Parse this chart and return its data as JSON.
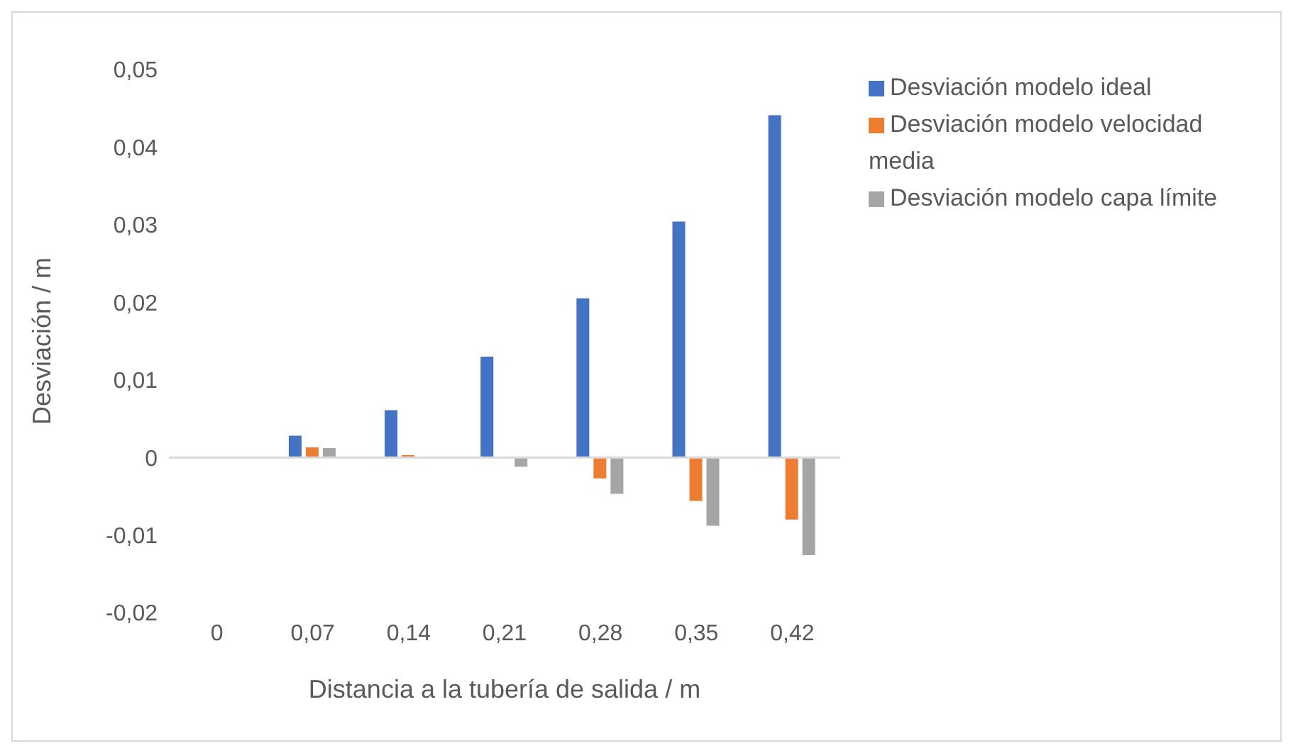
{
  "chart_data": {
    "type": "bar",
    "xlabel": "Distancia a la tubería de salida / m",
    "ylabel": "Desviación / m",
    "categories": [
      "0",
      "0,07",
      "0,14",
      "0,21",
      "0,28",
      "0,35",
      "0,42"
    ],
    "series": [
      {
        "name": "Desviación modelo ideal",
        "color": "#4472c4",
        "values": [
          0,
          0.0028,
          0.0061,
          0.013,
          0.0205,
          0.0304,
          0.0441
        ]
      },
      {
        "name": "Desviación modelo velocidad media",
        "color": "#ed7d31",
        "values": [
          0,
          0.0013,
          0.0003,
          0,
          -0.0027,
          -0.0056,
          -0.008
        ]
      },
      {
        "name": "Desviación modelo capa límite",
        "color": "#a5a5a5",
        "values": [
          0,
          0.0012,
          0,
          -0.0012,
          -0.0047,
          -0.0088,
          -0.0126
        ]
      }
    ],
    "ylim": [
      -0.02,
      0.05
    ],
    "yticks": [
      {
        "value": -0.02,
        "label": "-0,02"
      },
      {
        "value": -0.01,
        "label": "-0,01"
      },
      {
        "value": 0,
        "label": "0"
      },
      {
        "value": 0.01,
        "label": "0,01"
      },
      {
        "value": 0.02,
        "label": "0,02"
      },
      {
        "value": 0.03,
        "label": "0,03"
      },
      {
        "value": 0.04,
        "label": "0,04"
      },
      {
        "value": 0.05,
        "label": "0,05"
      }
    ],
    "ref_lines": [
      {
        "axis": "y",
        "value": 0,
        "color": "#d9d9d9"
      }
    ],
    "grid": false,
    "legend": "right"
  }
}
